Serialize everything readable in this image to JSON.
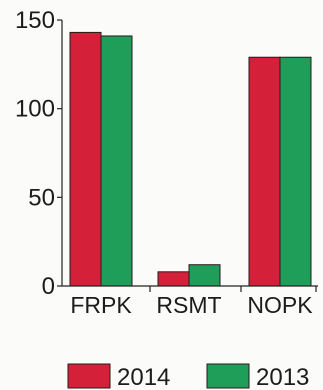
{
  "chart_data": {
    "type": "bar",
    "categories": [
      "FRPK",
      "RSMT",
      "NOPK"
    ],
    "series": [
      {
        "name": "2014",
        "values": [
          143,
          8,
          129
        ],
        "color": "#d5203a"
      },
      {
        "name": "2013",
        "values": [
          141,
          12,
          129
        ],
        "color": "#1f9e5a"
      }
    ],
    "yticks": [
      0,
      50,
      100,
      150
    ],
    "ylim": [
      0,
      150
    ],
    "grid": false,
    "legend_position": "bottom"
  }
}
